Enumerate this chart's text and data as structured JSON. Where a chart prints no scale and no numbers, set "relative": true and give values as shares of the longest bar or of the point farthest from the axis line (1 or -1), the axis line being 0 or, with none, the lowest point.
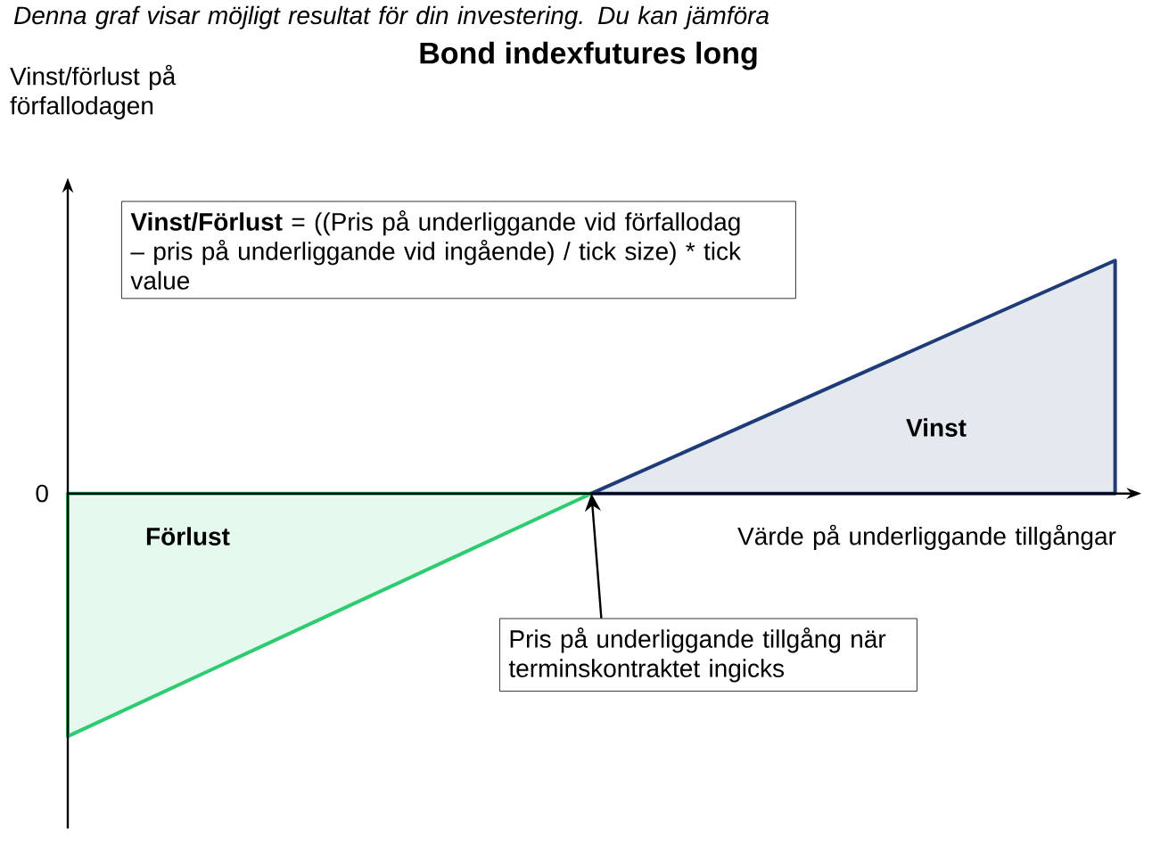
{
  "chart_data": {
    "type": "area",
    "relative": true,
    "title": "Bond indexfutures long",
    "xlabel": "Värde på underliggande tillgångar",
    "categories": [
      null,
      null,
      null
    ],
    "series": [
      {
        "color": "#2ecc71",
        "values": [
          -1,
          0,
          null
        ]
      },
      {
        "color": "#1f3c78",
        "values": [
          null,
          0,
          0.96
        ]
      }
    ],
    "annotations": [
      "*Denna graf visar möjligt resultat för din investering. Du kan jämföra*",
      "**Vinst/Förlust** = ((Pris på underliggande vid förfallodag – pris på underliggande vid ingående) / tick size) * tick value",
      "0",
      "**Vinst**",
      "**Förlust**",
      "Pris på underliggande tillgång när terminskontraktet ingicks",
      "Vinst/förlust på förfallodagen"
    ]
  }
}
